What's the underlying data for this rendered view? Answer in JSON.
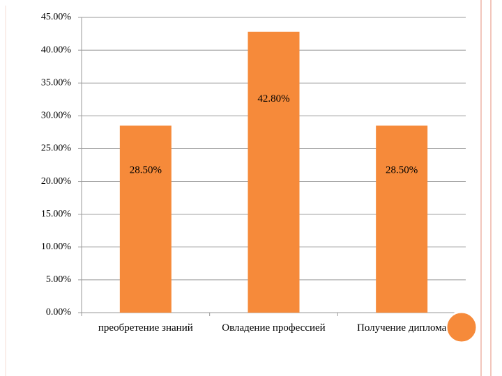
{
  "chart_data": {
    "type": "bar",
    "categories": [
      "преобретение знаний",
      "Овладение профессией",
      "Получение диплома"
    ],
    "values": [
      28.5,
      42.8,
      28.5
    ],
    "value_labels": [
      "28.50%",
      "42.80%",
      "28.50%"
    ],
    "color": "#f68a3a",
    "ylim": [
      0,
      45
    ],
    "yticks": [
      {
        "value": 0,
        "label": "0.00%"
      },
      {
        "value": 5,
        "label": "5.00%"
      },
      {
        "value": 10,
        "label": "10.00%"
      },
      {
        "value": 15,
        "label": "15.00%"
      },
      {
        "value": 20,
        "label": "20.00%"
      },
      {
        "value": 25,
        "label": "25.00%"
      },
      {
        "value": 30,
        "label": "30.00%"
      },
      {
        "value": 35,
        "label": "35.00%"
      },
      {
        "value": 40,
        "label": "40.00%"
      },
      {
        "value": 45,
        "label": "45.00%"
      }
    ],
    "grid": true
  }
}
